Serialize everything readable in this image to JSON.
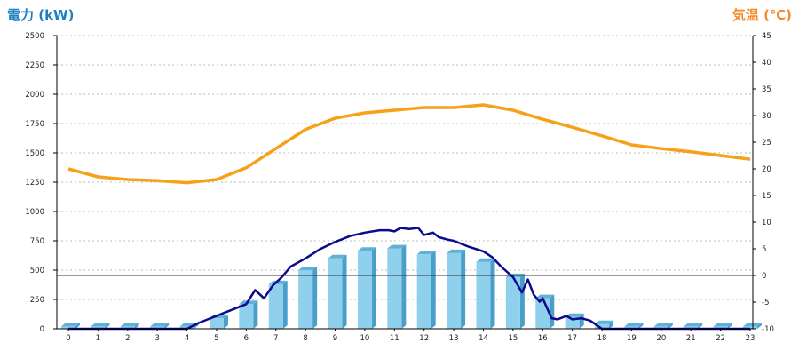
{
  "chart_data": {
    "type": "bar",
    "title": "",
    "left_axis": {
      "label": "電力 (kW)",
      "min": 0,
      "max": 2500,
      "ticks": [
        0,
        250,
        500,
        750,
        1000,
        1250,
        1500,
        1750,
        2000,
        2250,
        2500
      ]
    },
    "right_axis": {
      "label": "気温 (℃)",
      "min": -10,
      "max": 45,
      "ticks": [
        -10,
        -5,
        0,
        5,
        10,
        15,
        20,
        25,
        30,
        35,
        40,
        45
      ]
    },
    "categories": [
      "0",
      "1",
      "2",
      "3",
      "4",
      "5",
      "6",
      "7",
      "8",
      "9",
      "10",
      "11",
      "12",
      "13",
      "14",
      "15",
      "16",
      "17",
      "18",
      "19",
      "20",
      "21",
      "22",
      "23"
    ],
    "grid": true,
    "zero_line": 0,
    "colors": {
      "left_axis": "#1f7fc4",
      "right_axis": "#f58a2a",
      "bar_front": "#8fd0ec",
      "bar_side": "#4a9fca",
      "bar_top": "#5fb1d8",
      "power_line": "#0a0a8c",
      "temperature_line": "#f5a21a",
      "grid": "#bbbbbb",
      "zero_line": "#333333"
    },
    "series": [
      {
        "type": "bar",
        "axis": "left",
        "values": [
          20,
          20,
          20,
          20,
          20,
          90,
          210,
          380,
          500,
          600,
          665,
          685,
          635,
          645,
          570,
          440,
          260,
          100,
          40,
          20,
          20,
          20,
          20,
          20
        ]
      },
      {
        "type": "line",
        "axis": "left",
        "x": [
          0,
          1,
          2,
          3,
          4,
          4.4,
          4.8,
          5.2,
          5.6,
          6.0,
          6.3,
          6.6,
          6.9,
          7.2,
          7.5,
          8.0,
          8.5,
          9.0,
          9.5,
          10.0,
          10.5,
          10.8,
          11.0,
          11.2,
          11.5,
          11.8,
          12.0,
          12.3,
          12.5,
          12.8,
          13.0,
          13.5,
          14.0,
          14.3,
          14.6,
          15.0,
          15.3,
          15.5,
          15.7,
          15.9,
          16.0,
          16.3,
          16.5,
          16.8,
          17.0,
          17.3,
          17.6,
          18.0,
          19,
          20,
          21,
          22,
          23
        ],
        "y": [
          0,
          0,
          0,
          0,
          0,
          50,
          90,
          130,
          170,
          210,
          330,
          260,
          370,
          440,
          530,
          600,
          680,
          740,
          790,
          820,
          840,
          840,
          830,
          860,
          850,
          860,
          800,
          820,
          780,
          760,
          750,
          700,
          660,
          610,
          530,
          440,
          310,
          420,
          290,
          230,
          260,
          90,
          80,
          110,
          80,
          90,
          70,
          0,
          0,
          0,
          0,
          0,
          0
        ]
      },
      {
        "type": "line",
        "axis": "right",
        "x": [
          0,
          1,
          2,
          3,
          4,
          5,
          6,
          7,
          8,
          9,
          10,
          11,
          12,
          13,
          14,
          15,
          16,
          17,
          18,
          19,
          20,
          21,
          22,
          23
        ],
        "values": [
          20,
          18.5,
          18,
          17.8,
          17.4,
          18,
          20.2,
          23.8,
          27.4,
          29.5,
          30.5,
          31,
          31.5,
          31.5,
          32,
          31,
          29.3,
          27.8,
          26.2,
          24.5,
          23.8,
          23.2,
          22.5,
          21.8
        ]
      }
    ]
  }
}
